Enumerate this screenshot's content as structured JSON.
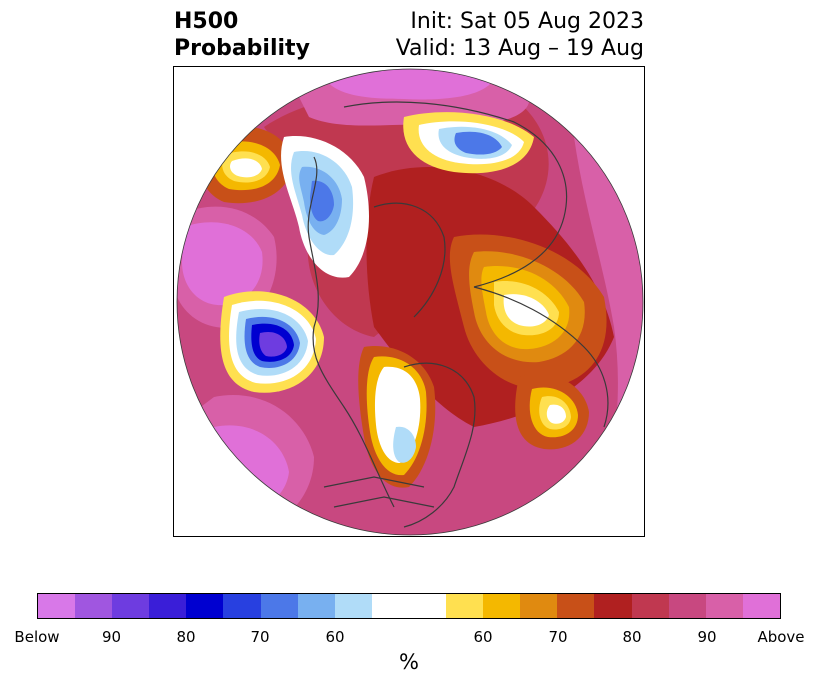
{
  "title": {
    "left_line1": "H500",
    "left_line2": "Probability",
    "right_line1": "Init: Sat 05 Aug 2023",
    "right_line2": "Valid: 13 Aug – 19 Aug"
  },
  "colorbar": {
    "unit": "%",
    "colors": [
      "#d878e8",
      "#a056e0",
      "#6e3ce0",
      "#3a1ed8",
      "#0000d0",
      "#2840e0",
      "#4c78e8",
      "#78b0f0",
      "#b0dcf8",
      "#ffffff",
      "#ffffff",
      "#ffe050",
      "#f4b800",
      "#e08a10",
      "#c85018",
      "#b02020",
      "#c03850",
      "#c84880",
      "#d860a8",
      "#e070d8"
    ],
    "tick_labels": [
      "Below",
      "90",
      "80",
      "70",
      "60",
      "60",
      "70",
      "80",
      "90",
      "Above"
    ]
  },
  "map": {
    "projection": "north polar stereographic",
    "palette": {
      "above_extreme": "#e070d8",
      "above_90": "#d860a8",
      "above_85": "#c84880",
      "above_80": "#c03850",
      "above_75": "#b02020",
      "above_70": "#c85018",
      "above_65": "#e08a10",
      "above_60": "#f4b800",
      "above_55": "#ffe050",
      "neutral": "#ffffff",
      "below_55": "#b0dcf8",
      "below_60": "#78b0f0",
      "below_65": "#4c78e8",
      "below_70": "#2840e0",
      "below_75": "#0000d0",
      "below_80": "#3a1ed8",
      "below_90": "#6e3ce0",
      "boundary_line": "#3a3a3a"
    }
  }
}
